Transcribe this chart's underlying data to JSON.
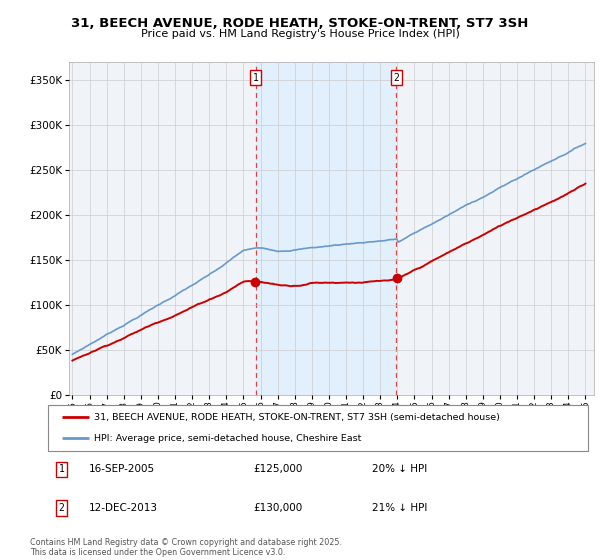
{
  "title": "31, BEECH AVENUE, RODE HEATH, STOKE-ON-TRENT, ST7 3SH",
  "subtitle": "Price paid vs. HM Land Registry's House Price Index (HPI)",
  "legend_line1": "31, BEECH AVENUE, RODE HEATH, STOKE-ON-TRENT, ST7 3SH (semi-detached house)",
  "legend_line2": "HPI: Average price, semi-detached house, Cheshire East",
  "annotation1_label": "1",
  "annotation1_date": "16-SEP-2005",
  "annotation1_price": "£125,000",
  "annotation1_hpi": "20% ↓ HPI",
  "annotation2_label": "2",
  "annotation2_date": "12-DEC-2013",
  "annotation2_price": "£130,000",
  "annotation2_hpi": "21% ↓ HPI",
  "footnote": "Contains HM Land Registry data © Crown copyright and database right 2025.\nThis data is licensed under the Open Government Licence v3.0.",
  "vline1_x": 2005.71,
  "vline2_x": 2013.95,
  "sale1_price": 125000,
  "sale2_price": 130000,
  "red_color": "#cc0000",
  "blue_color": "#6699cc",
  "vline_color": "#dd4444",
  "shade_color": "#ddeeff",
  "ylim": [
    0,
    370000
  ],
  "xlim": [
    1994.8,
    2025.5
  ],
  "yticks": [
    0,
    50000,
    100000,
    150000,
    200000,
    250000,
    300000,
    350000
  ],
  "bg_color": "#f0f4f8"
}
